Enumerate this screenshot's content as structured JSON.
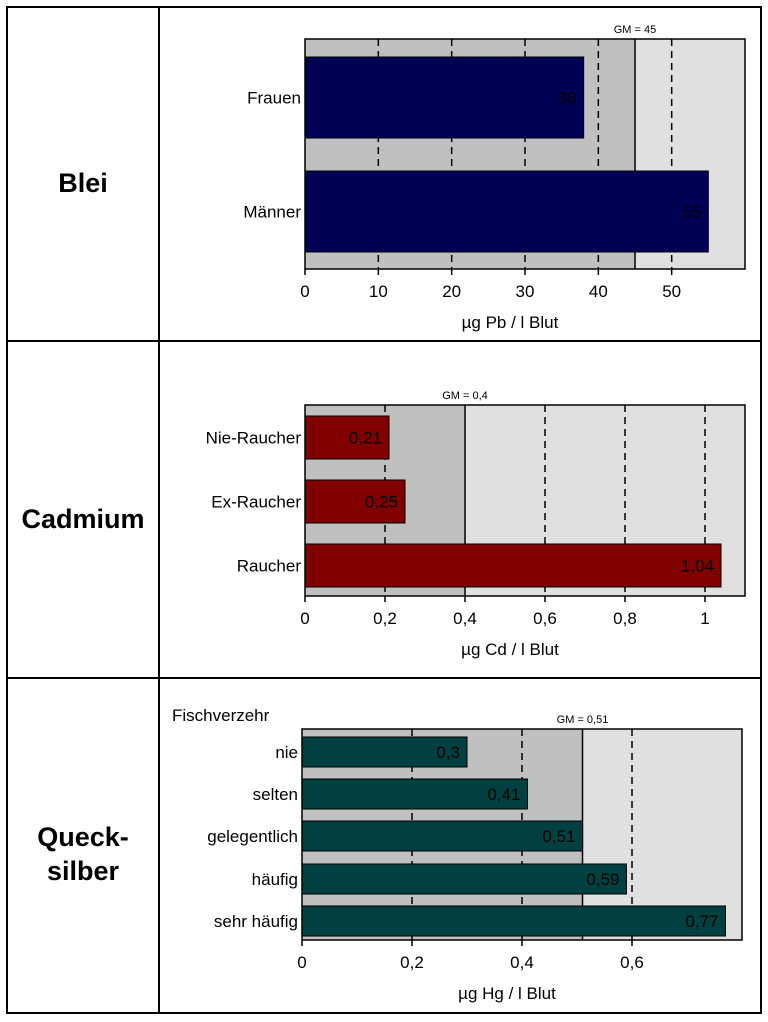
{
  "chart_data": [
    {
      "type": "bar",
      "orientation": "horizontal",
      "metal": [
        "Blei"
      ],
      "categories": [
        "Frauen",
        "Männer"
      ],
      "values": [
        38,
        55
      ],
      "value_labels": [
        "38",
        "55"
      ],
      "xlim": [
        0,
        60
      ],
      "ticks": [
        0,
        10,
        20,
        30,
        40,
        50
      ],
      "tick_labels": [
        "0",
        "10",
        "20",
        "30",
        "40",
        "50"
      ],
      "dashed_lines": [
        10,
        20,
        30,
        40,
        50
      ],
      "gm_value": 45,
      "gm_label": "GM = 45",
      "xlabel": "µg Pb / l Blut",
      "group_label": "",
      "bar_color": "#000055",
      "shade_color": "#c0c0c0",
      "bg_color": "#e0e0e0"
    },
    {
      "type": "bar",
      "orientation": "horizontal",
      "metal": [
        "Cadmium"
      ],
      "categories": [
        "Nie-Raucher",
        "Ex-Raucher",
        "Raucher"
      ],
      "values": [
        0.21,
        0.25,
        1.04
      ],
      "value_labels": [
        "0,21",
        "0,25",
        "1,04"
      ],
      "xlim": [
        0,
        1.1
      ],
      "ticks": [
        0,
        0.2,
        0.4,
        0.6,
        0.8,
        1
      ],
      "tick_labels": [
        "0",
        "0,2",
        "0,4",
        "0,6",
        "0,8",
        "1"
      ],
      "dashed_lines": [
        0.2,
        0.6,
        0.8,
        1
      ],
      "gm_value": 0.4,
      "gm_label": "GM = 0,4",
      "xlabel": "µg Cd / l Blut",
      "group_label": "",
      "bar_color": "#800000",
      "shade_color": "#c0c0c0",
      "bg_color": "#e0e0e0"
    },
    {
      "type": "bar",
      "orientation": "horizontal",
      "metal": [
        "Queck-",
        "silber"
      ],
      "categories": [
        "nie",
        "selten",
        "gelegentlich",
        "häufig",
        "sehr häufig"
      ],
      "values": [
        0.3,
        0.41,
        0.51,
        0.59,
        0.77
      ],
      "value_labels": [
        "0,3",
        "0,41",
        "0,51",
        "0,59",
        "0,77"
      ],
      "xlim": [
        0,
        0.8
      ],
      "ticks": [
        0,
        0.2,
        0.4,
        0.6
      ],
      "tick_labels": [
        "0",
        "0,2",
        "0,4",
        "0,6"
      ],
      "dashed_lines": [
        0.2,
        0.4,
        0.6
      ],
      "gm_value": 0.51,
      "gm_label": "GM = 0,51",
      "xlabel": "µg Hg / l Blut",
      "group_label": "Fischverzehr",
      "bar_color": "#004040",
      "shade_color": "#c0c0c0",
      "bg_color": "#e0e0e0"
    }
  ]
}
